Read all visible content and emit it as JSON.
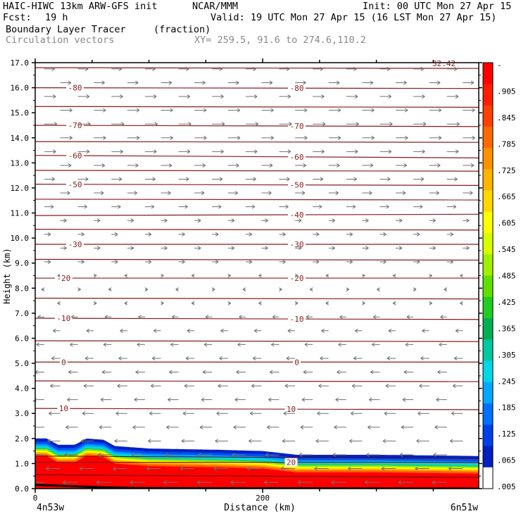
{
  "header": {
    "model": "HAIC-HIWC 13km ARW-GFS init",
    "org": "NCAR/MMM",
    "init": "Init: 00 UTC Mon 27 Apr 15",
    "fcst_label": "Fcst:",
    "fcst_value": "19 h",
    "valid": "Valid: 19 UTC Mon 27 Apr 15 (16 LST Mon 27 Apr 15)",
    "field": "Boundary Layer Tracer",
    "field_units": "(fraction)",
    "overlay": "Circulation vectors",
    "xy": "XY= 259.5, 91.6 to 274.6,110.2"
  },
  "colors": {
    "contour": "#8b1a1a",
    "vector": "#707070",
    "terrain": "#000000"
  },
  "chart_data": {
    "type": "heatmap",
    "ylabel": "Height (km)",
    "xlabel": "Distance (km)",
    "ylim": [
      0,
      17
    ],
    "xlim": [
      0,
      390
    ],
    "yticks": [
      "0.0",
      "1.0",
      "2.0",
      "3.0",
      "4.0",
      "5.0",
      "6.0",
      "7.0",
      "8.0",
      "9.0",
      "10.0",
      "11.0",
      "12.0",
      "13.0",
      "14.0",
      "15.0",
      "16.0",
      "17.0"
    ],
    "xticks": [
      {
        "value": 0,
        "label": "0"
      },
      {
        "value": 200,
        "label": "200"
      }
    ],
    "x_endpoints": {
      "left": "4n53w",
      "right": "6n51w"
    },
    "corner_label": "32.42",
    "colorbar": {
      "labels": [
        "-",
        ".905",
        ".845",
        ".785",
        ".725",
        ".665",
        ".605",
        ".545",
        ".485",
        ".425",
        ".365",
        ".305",
        ".245",
        ".185",
        ".125",
        ".065",
        ".005"
      ],
      "colors": [
        "#ff0000",
        "#ff1c00",
        "#ff4000",
        "#ff6a00",
        "#ff9000",
        "#ffb400",
        "#ffd800",
        "#ffff00",
        "#d8ff00",
        "#a0f000",
        "#60e000",
        "#20cc20",
        "#00b050",
        "#00c8a0",
        "#00d8e8",
        "#00a8ff",
        "#0070ff",
        "#0040e8",
        "#0020c0",
        "#ffffff"
      ]
    },
    "temperature_contours": [
      {
        "label": "-80",
        "y": [
          16.0,
          15.97
        ],
        "label_x": [
          35,
          230
        ]
      },
      {
        "label": "-70",
        "y": [
          14.5,
          14.45
        ],
        "label_x": [
          35,
          230
        ]
      },
      {
        "label": "-60",
        "y": [
          13.3,
          13.2
        ],
        "label_x": [
          35,
          230
        ]
      },
      {
        "label": "-50",
        "y": [
          12.15,
          12.1
        ],
        "label_x": [
          35,
          230
        ]
      },
      {
        "label": "-40",
        "y": [
          10.9,
          10.95
        ],
        "label_x": [
          230
        ]
      },
      {
        "label": "-30",
        "y": [
          9.75,
          9.75
        ],
        "label_x": [
          35,
          230
        ]
      },
      {
        "label": "-20",
        "y": [
          8.4,
          8.4
        ],
        "label_x": [
          25,
          230
        ]
      },
      {
        "label": "-10",
        "y": [
          6.8,
          6.75
        ],
        "label_x": [
          25,
          230
        ]
      },
      {
        "label": "0",
        "y": [
          5.05,
          5.05
        ],
        "label_x": [
          25,
          230
        ]
      },
      {
        "label": "10",
        "y": [
          3.2,
          3.15
        ],
        "label_x": [
          25,
          225
        ]
      },
      {
        "label": "20",
        "y": [
          1.05,
          1.05
        ],
        "label_x": [
          225
        ]
      }
    ],
    "unlabeled_contour_levels": [
      16.8,
      15.25,
      13.85,
      12.7,
      11.55,
      10.35,
      9.15,
      7.6,
      5.9,
      4.3
    ],
    "tracer_top_km": [
      [
        0,
        2.0
      ],
      [
        10,
        2.0
      ],
      [
        20,
        1.75
      ],
      [
        35,
        1.75
      ],
      [
        45,
        2.0
      ],
      [
        60,
        1.95
      ],
      [
        70,
        1.7
      ],
      [
        100,
        1.6
      ],
      [
        160,
        1.55
      ],
      [
        200,
        1.5
      ],
      [
        230,
        1.35
      ],
      [
        300,
        1.35
      ],
      [
        390,
        1.3
      ]
    ],
    "terrain_km": [
      [
        0,
        0.15
      ],
      [
        30,
        0.1
      ],
      [
        60,
        0.05
      ],
      [
        90,
        0.02
      ],
      [
        390,
        0.0
      ]
    ]
  }
}
